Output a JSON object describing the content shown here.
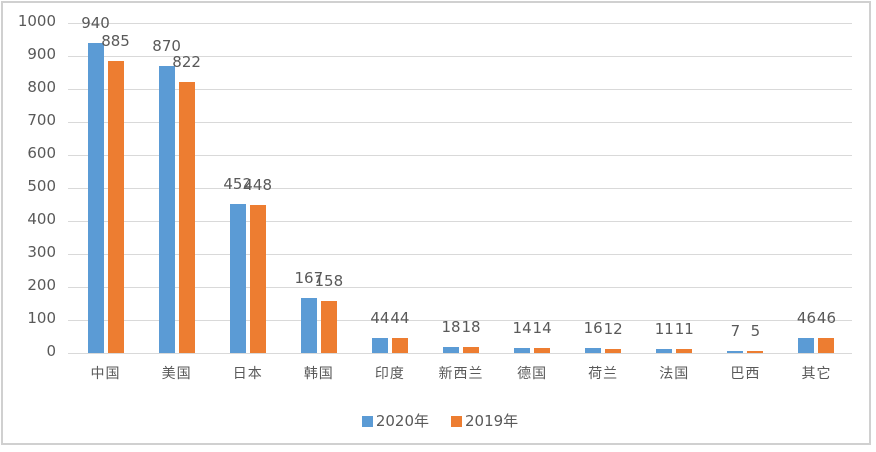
{
  "chart_data": {
    "type": "bar",
    "categories": [
      "中国",
      "美国",
      "日本",
      "韩国",
      "印度",
      "新西兰",
      "德国",
      "荷兰",
      "法国",
      "巴西",
      "其它"
    ],
    "series": [
      {
        "name": "2020年",
        "color": "#5B9BD5",
        "values": [
          940,
          870,
          452,
          167,
          44,
          18,
          14,
          16,
          11,
          7,
          46
        ]
      },
      {
        "name": "2019年",
        "color": "#ED7D31",
        "values": [
          885,
          822,
          448,
          158,
          44,
          18,
          14,
          12,
          11,
          5,
          46
        ]
      }
    ],
    "title": "",
    "xlabel": "",
    "ylabel": "",
    "ylim": [
      0,
      1000
    ],
    "ytick_step": 100,
    "grid": true,
    "legend_position": "bottom",
    "data_labels": true
  },
  "colors": {
    "grid": "#D9D9D9",
    "axis_text": "#595959",
    "label_text": "#595959",
    "border": "#D0D0D0",
    "background": "#FFFFFF"
  }
}
